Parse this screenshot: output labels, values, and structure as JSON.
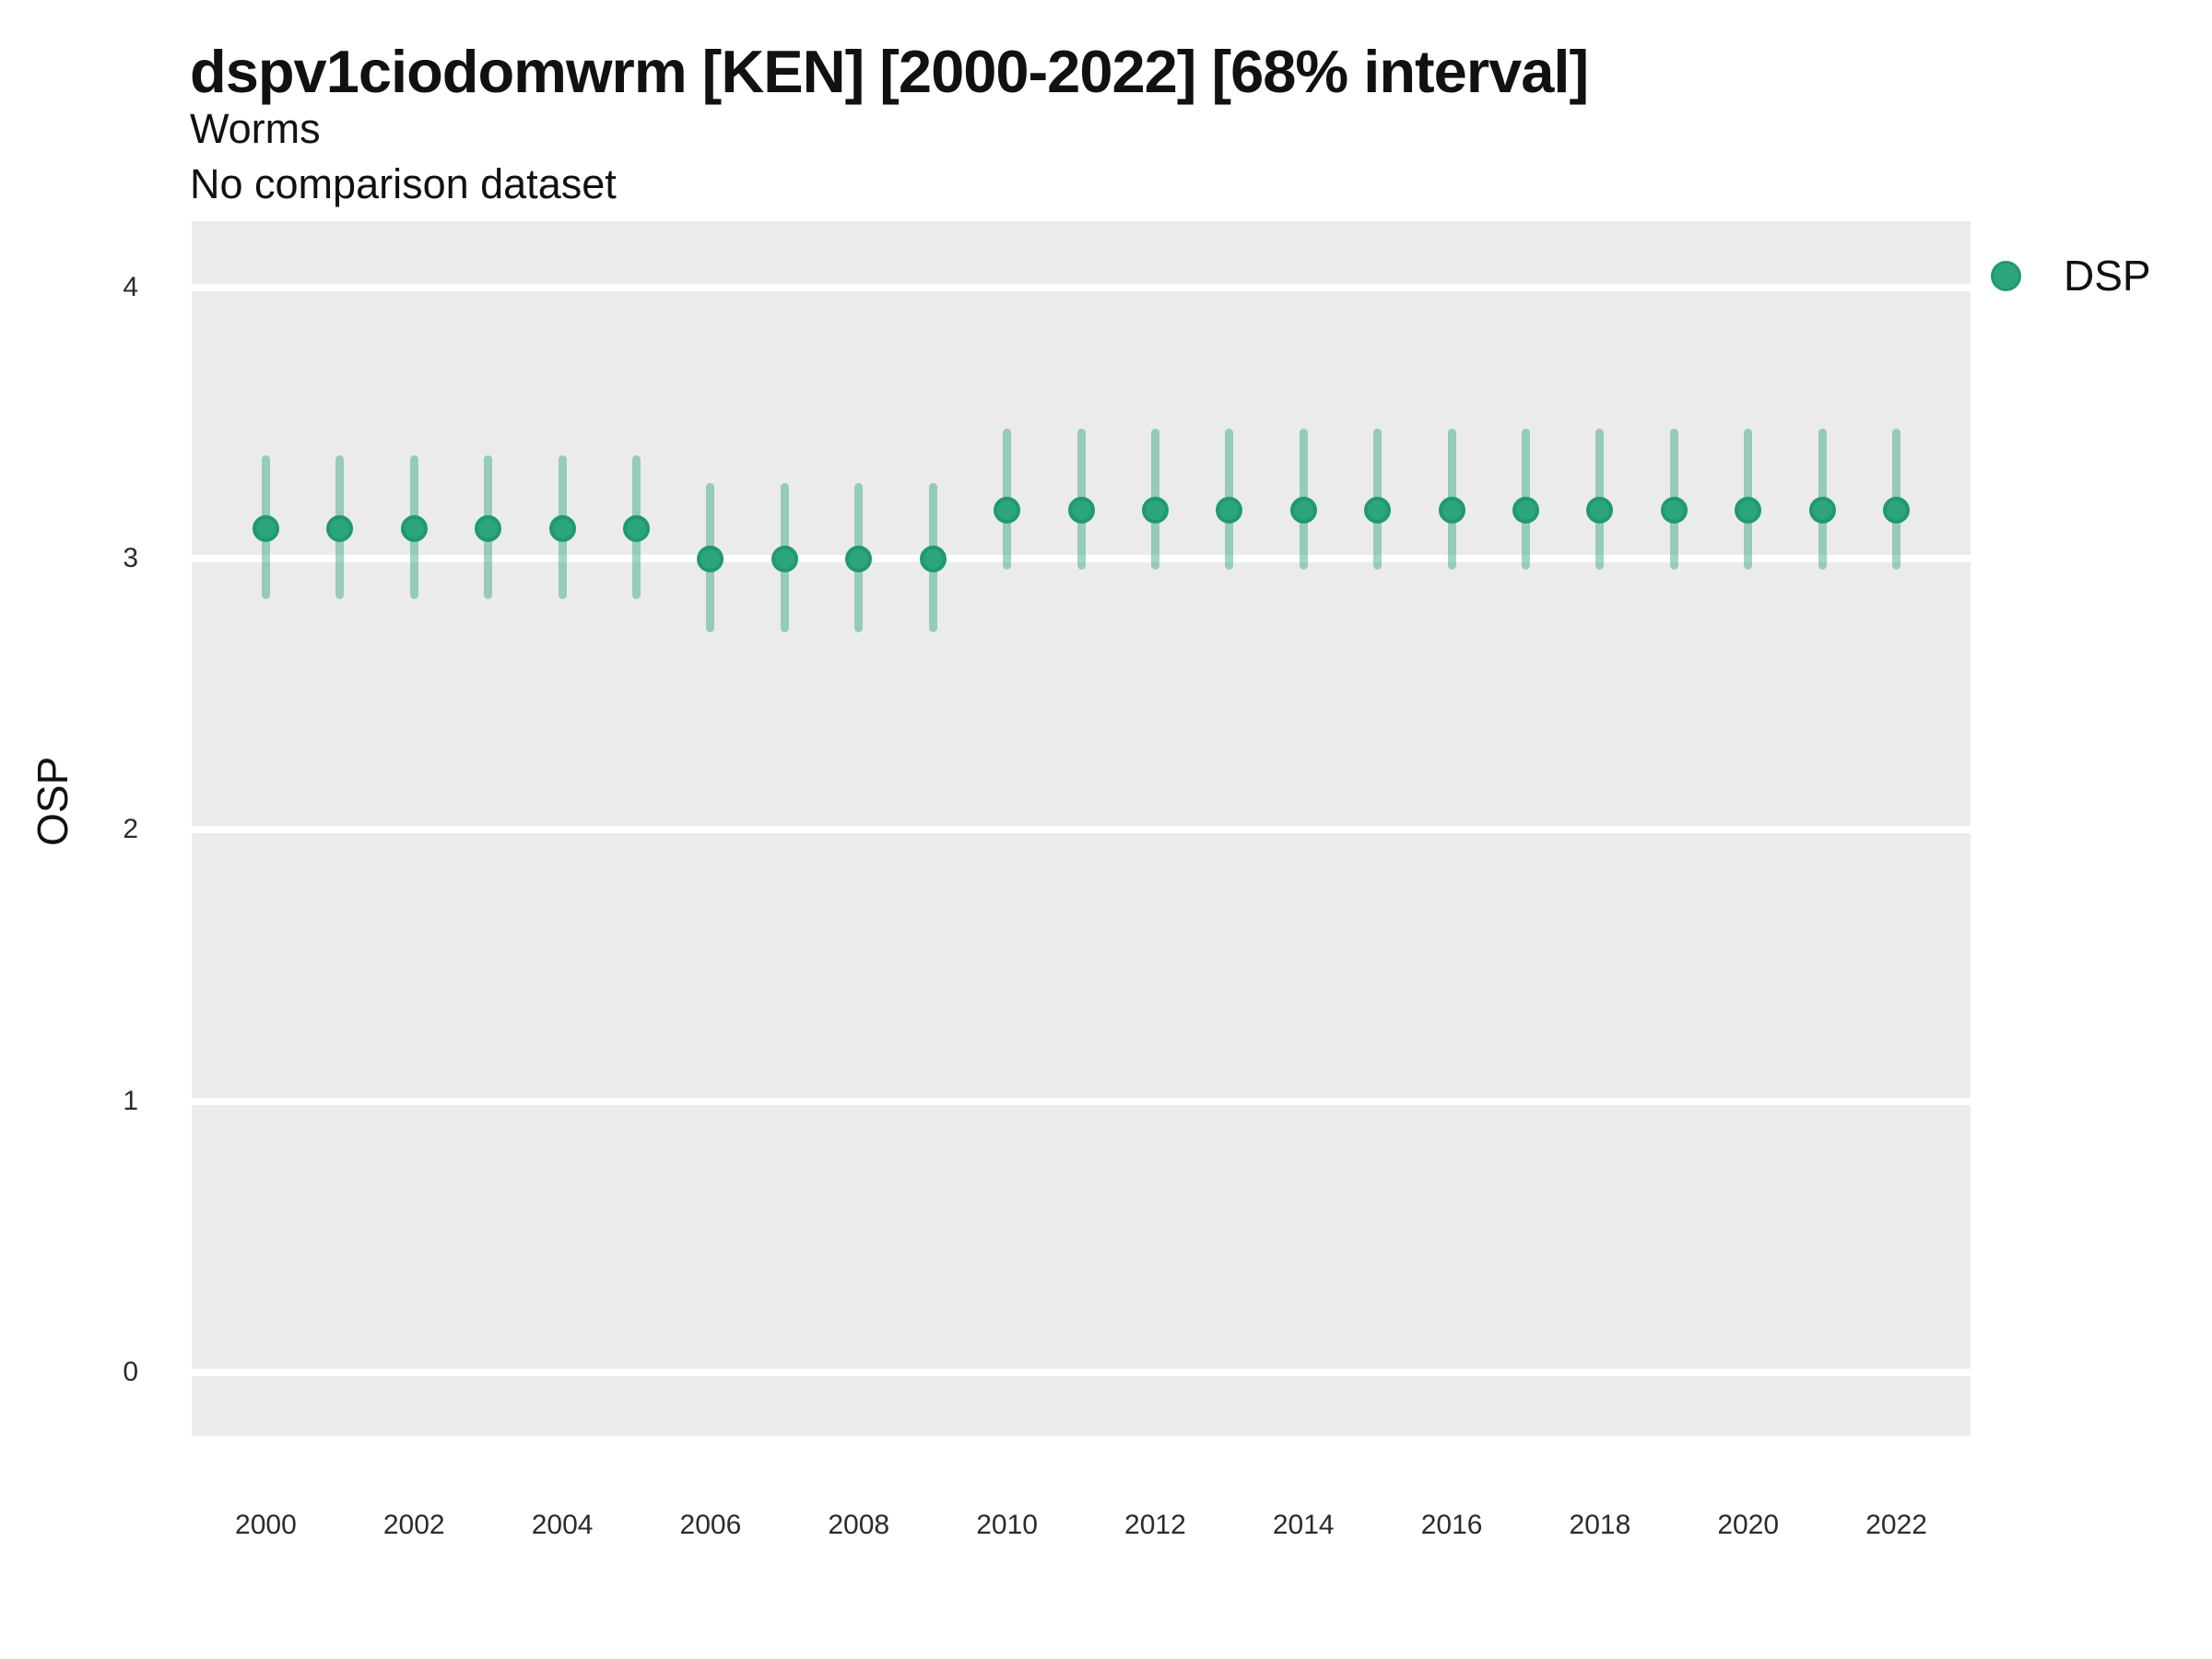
{
  "header": {
    "title": "dspv1ciodomwrm [KEN] [2000-2022] [68% interval]",
    "subtitle": "Worms",
    "comparison_note": "No comparison dataset"
  },
  "axes": {
    "y_label": "OSP",
    "y_ticks": [
      0,
      1,
      2,
      3,
      4
    ],
    "x_ticks": [
      2000,
      2002,
      2004,
      2006,
      2008,
      2010,
      2012,
      2014,
      2016,
      2018,
      2020,
      2022
    ]
  },
  "legend": {
    "items": [
      {
        "label": "DSP",
        "color": "#2ca57e"
      }
    ]
  },
  "colors": {
    "point_fill": "#2ca57e",
    "point_stroke": "#1f9a6e",
    "errorbar": "rgba(44,164,125,0.45)",
    "panel_background": "#ebebeb",
    "gridline": "#ffffff",
    "text": "#111111",
    "tick_text": "#2b2b2b"
  },
  "chart_data": {
    "type": "scatter",
    "title": "dspv1ciodomwrm [KEN] [2000-2022] [68% interval]",
    "subtitle": "Worms",
    "note": "No comparison dataset",
    "xlabel": "",
    "ylabel": "OSP",
    "interval_level": "68%",
    "xlim": [
      1999,
      2023
    ],
    "ylim": [
      -0.235,
      4.245
    ],
    "grid": "horizontal-major-only",
    "legend_position": "top-right",
    "series": [
      {
        "name": "DSP",
        "x": [
          2000,
          2001,
          2002,
          2003,
          2004,
          2005,
          2006,
          2007,
          2008,
          2009,
          2010,
          2011,
          2012,
          2013,
          2014,
          2015,
          2016,
          2017,
          2018,
          2019,
          2020,
          2021,
          2022
        ],
        "y": [
          3.11,
          3.11,
          3.11,
          3.11,
          3.11,
          3.11,
          3.0,
          3.0,
          3.0,
          3.0,
          3.18,
          3.18,
          3.18,
          3.18,
          3.18,
          3.18,
          3.18,
          3.18,
          3.18,
          3.18,
          3.18,
          3.18,
          3.18
        ],
        "y_lo": [
          2.85,
          2.85,
          2.85,
          2.85,
          2.85,
          2.85,
          2.73,
          2.73,
          2.73,
          2.73,
          2.96,
          2.96,
          2.96,
          2.96,
          2.96,
          2.96,
          2.96,
          2.96,
          2.96,
          2.96,
          2.96,
          2.96,
          2.96
        ],
        "y_hi": [
          3.38,
          3.38,
          3.38,
          3.38,
          3.38,
          3.38,
          3.28,
          3.28,
          3.28,
          3.28,
          3.48,
          3.48,
          3.48,
          3.48,
          3.48,
          3.48,
          3.48,
          3.48,
          3.48,
          3.48,
          3.48,
          3.48,
          3.48
        ]
      }
    ]
  }
}
